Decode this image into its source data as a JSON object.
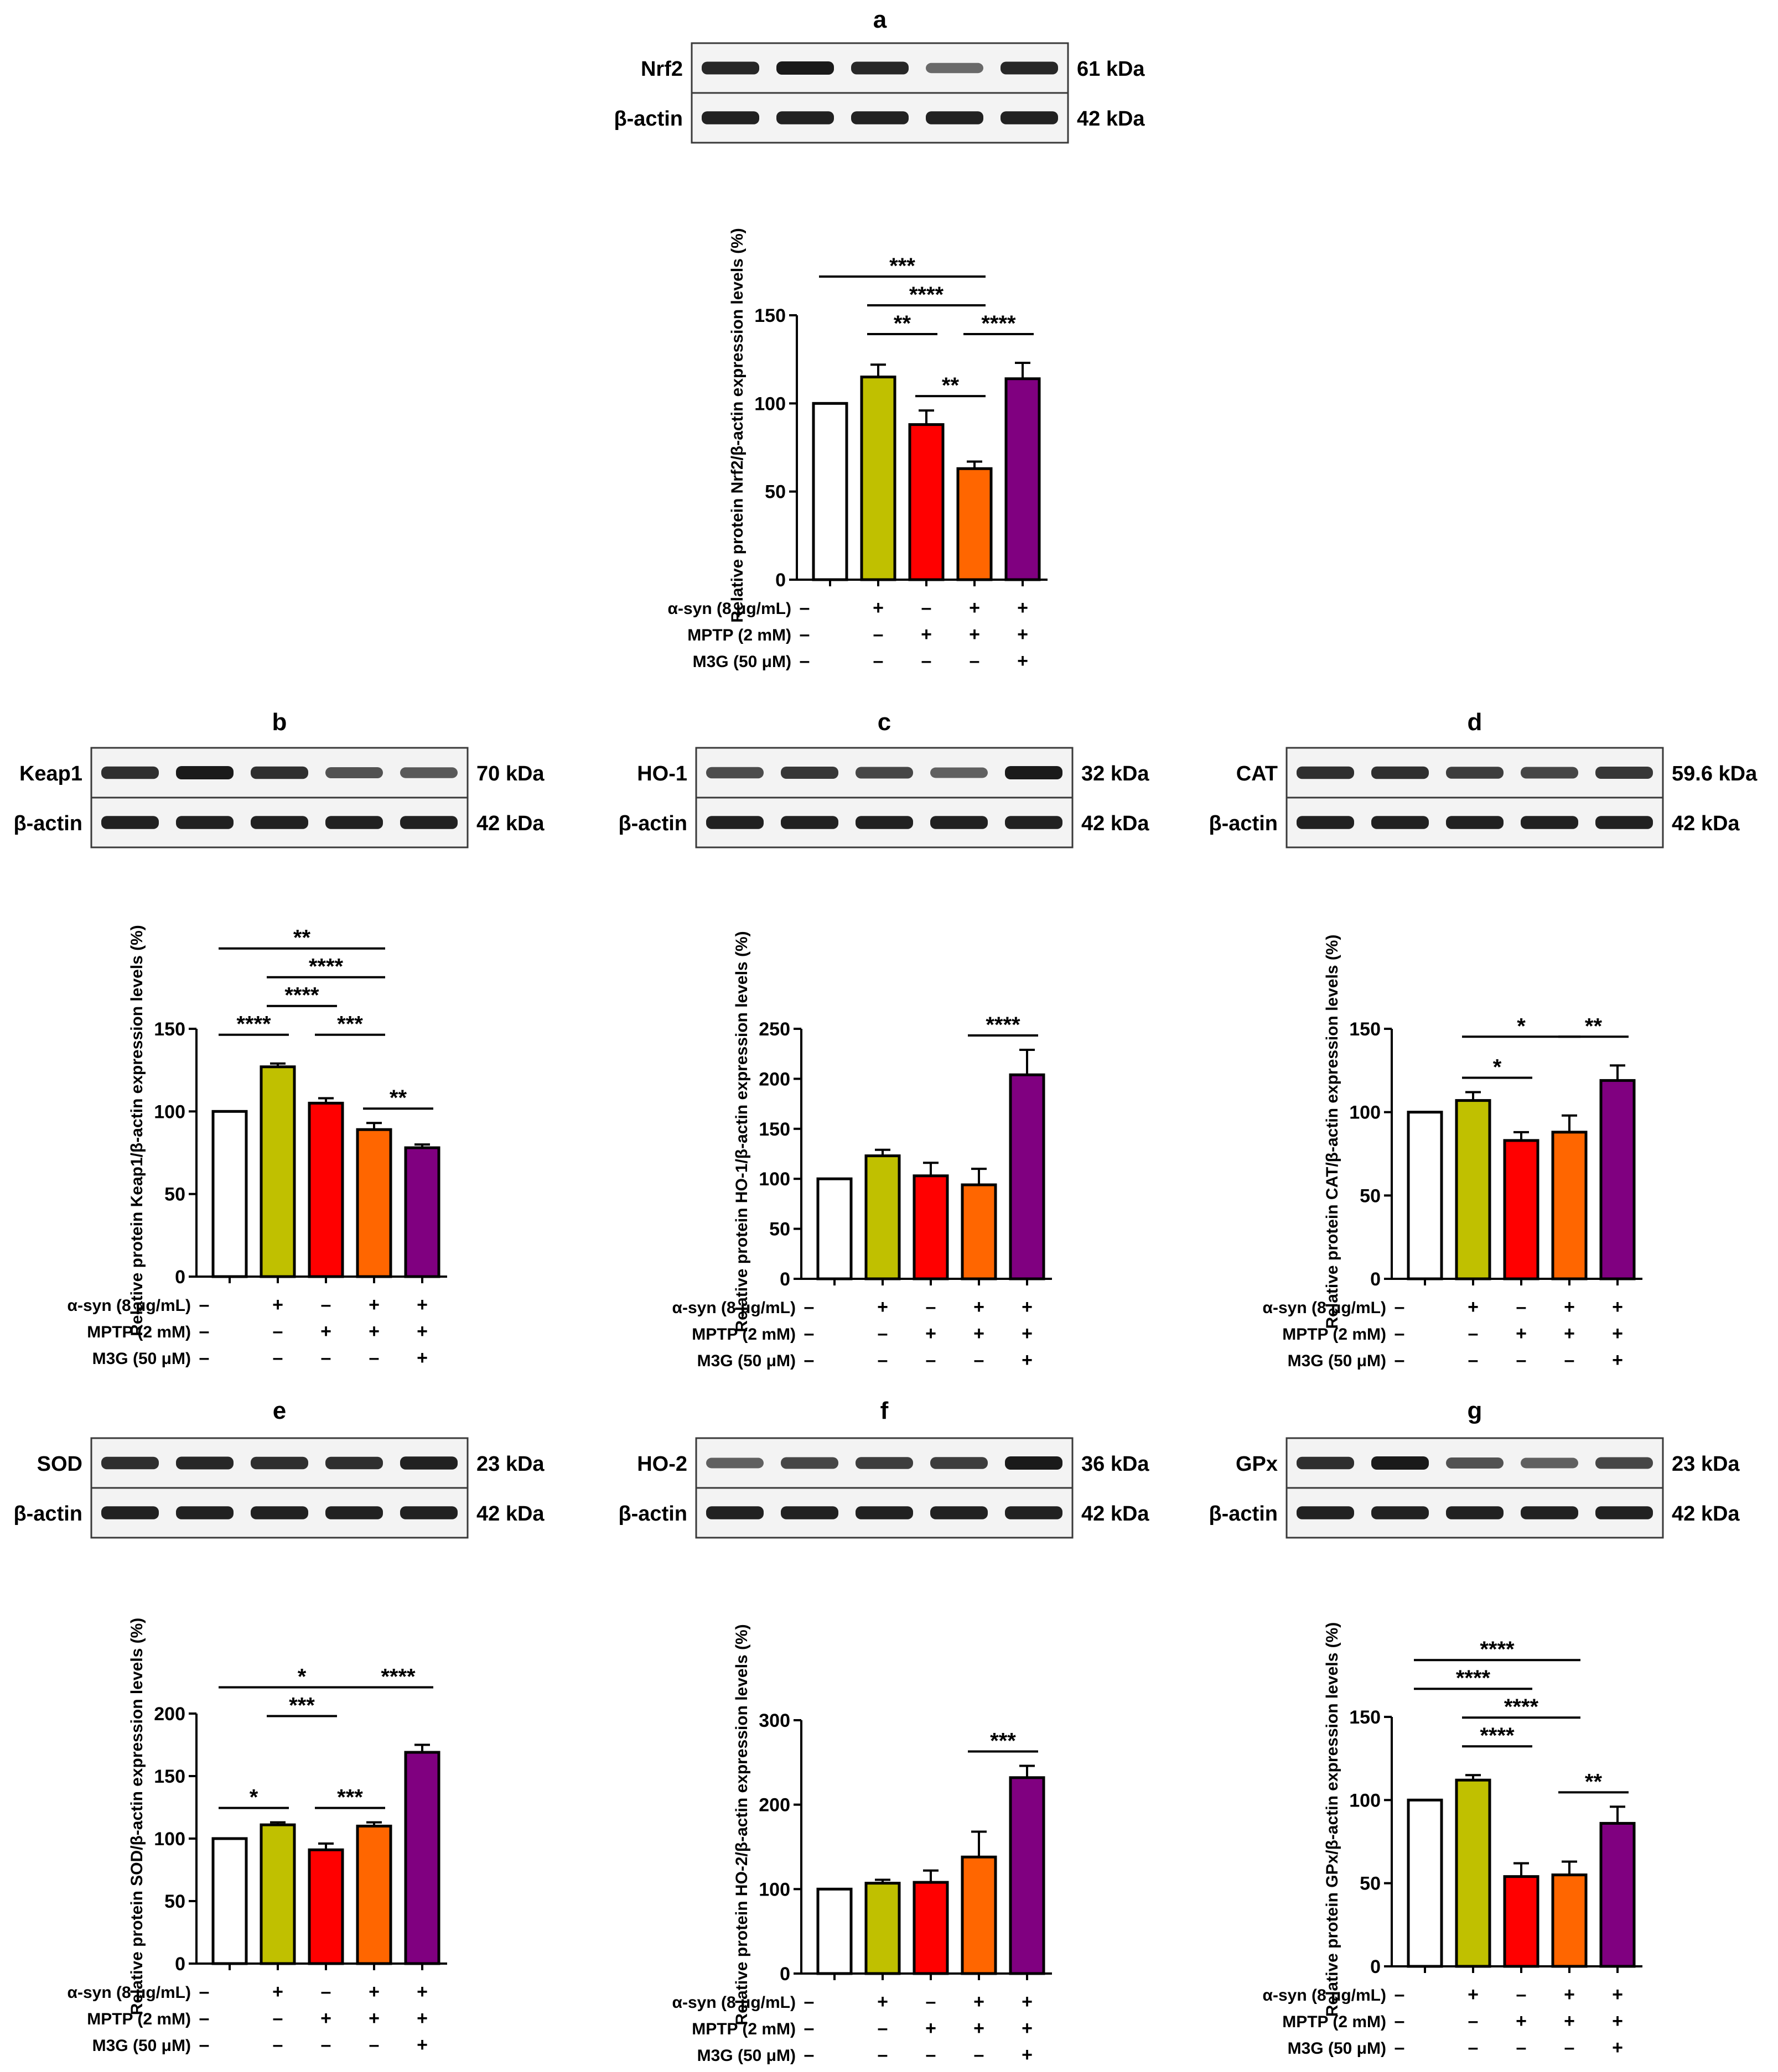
{
  "figure": {
    "treatment_rows": [
      "α-syn (8 μg/mL)",
      "MPTP (2 mM)",
      "M3G (50 μM)"
    ],
    "treatment_signs": [
      [
        "–",
        "+",
        "–",
        "+",
        "+"
      ],
      [
        "–",
        "–",
        "+",
        "+",
        "+"
      ],
      [
        "–",
        "–",
        "–",
        "–",
        "+"
      ]
    ],
    "group_colors": [
      "#ffffff",
      "#c0c000",
      "#ff0000",
      "#ff6600",
      "#800080"
    ],
    "loading_control": "β-actin",
    "loading_control_kda": "42 kDa"
  },
  "panels": [
    {
      "letter": "a",
      "protein": "Nrf2",
      "kda": "61 kDa",
      "band_intensity": [
        0.9,
        1.0,
        0.9,
        0.45,
        0.9
      ]
    },
    {
      "letter": "b",
      "protein": "Keap1",
      "kda": "70 kDa",
      "band_intensity": [
        0.85,
        1.0,
        0.85,
        0.6,
        0.55
      ]
    },
    {
      "letter": "c",
      "protein": "HO-1",
      "kda": "32 kDa",
      "band_intensity": [
        0.65,
        0.8,
        0.7,
        0.5,
        1.0
      ]
    },
    {
      "letter": "d",
      "protein": "CAT",
      "kda": "59.6 kDa",
      "band_intensity": [
        0.85,
        0.85,
        0.75,
        0.7,
        0.8
      ]
    },
    {
      "letter": "e",
      "protein": "SOD",
      "kda": "23 kDa",
      "band_intensity": [
        0.85,
        0.9,
        0.85,
        0.85,
        0.95
      ]
    },
    {
      "letter": "f",
      "protein": "HO-2",
      "kda": "36 kDa",
      "band_intensity": [
        0.5,
        0.7,
        0.75,
        0.75,
        1.0
      ]
    },
    {
      "letter": "g",
      "protein": "GPx",
      "kda": "23 kDa",
      "band_intensity": [
        0.85,
        1.0,
        0.6,
        0.5,
        0.7
      ]
    }
  ],
  "chart_data": [
    {
      "panel": "a",
      "type": "bar",
      "ylabel": "Relative protein Nrf2/β-actin expression levels (%)",
      "ylim": [
        0,
        150
      ],
      "yticks": [
        0,
        50,
        100,
        150
      ],
      "values": [
        100,
        115,
        88,
        63,
        114
      ],
      "errors": [
        0,
        7,
        8,
        4,
        9
      ],
      "significance": [
        {
          "from": 1,
          "to": 4,
          "label": "***",
          "level": 3
        },
        {
          "from": 2,
          "to": 4,
          "label": "****",
          "level": 2
        },
        {
          "from": 2,
          "to": 3,
          "label": "**",
          "level": 1
        },
        {
          "from": 4,
          "to": 5,
          "label": "****",
          "level": 1
        },
        {
          "from": 3,
          "to": 4,
          "label": "**",
          "level": 0
        }
      ]
    },
    {
      "panel": "b",
      "type": "bar",
      "ylabel": "Relative protein Keap1/β-actin expression levels (%)",
      "ylim": [
        0,
        150
      ],
      "yticks": [
        0,
        50,
        100,
        150
      ],
      "values": [
        100,
        127,
        105,
        89,
        78
      ],
      "errors": [
        0,
        2,
        3,
        4,
        2
      ],
      "significance": [
        {
          "from": 1,
          "to": 4,
          "label": "**",
          "level": 4
        },
        {
          "from": 2,
          "to": 4,
          "label": "****",
          "level": 3
        },
        {
          "from": 2,
          "to": 3,
          "label": "****",
          "level": 2
        },
        {
          "from": 1,
          "to": 2,
          "label": "****",
          "level": 1
        },
        {
          "from": 3,
          "to": 4,
          "label": "***",
          "level": 1
        },
        {
          "from": 4,
          "to": 5,
          "label": "**",
          "level": 0
        }
      ]
    },
    {
      "panel": "c",
      "type": "bar",
      "ylabel": "Relative protein HO-1/β-actin expression levels (%)",
      "ylim": [
        0,
        250
      ],
      "yticks": [
        0,
        50,
        100,
        150,
        200,
        250
      ],
      "values": [
        100,
        123,
        103,
        94,
        204
      ],
      "errors": [
        0,
        6,
        13,
        16,
        25
      ],
      "significance": [
        {
          "from": 4,
          "to": 5,
          "label": "****",
          "level": 0
        }
      ]
    },
    {
      "panel": "d",
      "type": "bar",
      "ylabel": "Relative protein CAT/β-actin expression levels (%)",
      "ylim": [
        0,
        150
      ],
      "yticks": [
        0,
        50,
        100,
        150
      ],
      "values": [
        100,
        107,
        83,
        88,
        119
      ],
      "errors": [
        0,
        5,
        5,
        10,
        9
      ],
      "significance": [
        {
          "from": 2,
          "to": 4,
          "label": "*",
          "level": 1
        },
        {
          "from": 4,
          "to": 5,
          "label": "**",
          "level": 1
        },
        {
          "from": 2,
          "to": 3,
          "label": "*",
          "level": 0
        }
      ]
    },
    {
      "panel": "e",
      "type": "bar",
      "ylabel": "Relative protein SOD/β-actin expression levels (%)",
      "ylim": [
        0,
        200
      ],
      "yticks": [
        0,
        50,
        100,
        150,
        200
      ],
      "values": [
        100,
        111,
        91,
        110,
        169
      ],
      "errors": [
        0,
        2,
        5,
        3,
        6
      ],
      "significance": [
        {
          "from": 1,
          "to": 4,
          "label": "*",
          "level": 2
        },
        {
          "from": 4,
          "to": 5,
          "label": "****",
          "level": 2
        },
        {
          "from": 2,
          "to": 3,
          "label": "***",
          "level": 1
        },
        {
          "from": 1,
          "to": 2,
          "label": "*",
          "level": 0
        },
        {
          "from": 3,
          "to": 4,
          "label": "***",
          "level": 0
        }
      ]
    },
    {
      "panel": "f",
      "type": "bar",
      "ylabel": "Relative protein HO-2/β-actin expression levels (%)",
      "ylim": [
        0,
        300
      ],
      "yticks": [
        0,
        100,
        200,
        300
      ],
      "values": [
        100,
        107,
        108,
        138,
        232
      ],
      "errors": [
        0,
        4,
        14,
        30,
        14
      ],
      "significance": [
        {
          "from": 4,
          "to": 5,
          "label": "***",
          "level": 0
        }
      ]
    },
    {
      "panel": "g",
      "type": "bar",
      "ylabel": "Relative protein GPx/β-actin expression levels (%)",
      "ylim": [
        0,
        150
      ],
      "yticks": [
        0,
        50,
        100,
        150
      ],
      "values": [
        100,
        112,
        54,
        55,
        86
      ],
      "errors": [
        0,
        3,
        8,
        8,
        10
      ],
      "significance": [
        {
          "from": 1,
          "to": 4,
          "label": "****",
          "level": 4
        },
        {
          "from": 1,
          "to": 3,
          "label": "****",
          "level": 3
        },
        {
          "from": 2,
          "to": 4,
          "label": "****",
          "level": 2
        },
        {
          "from": 2,
          "to": 3,
          "label": "****",
          "level": 1
        },
        {
          "from": 4,
          "to": 5,
          "label": "**",
          "level": 0
        }
      ]
    }
  ]
}
